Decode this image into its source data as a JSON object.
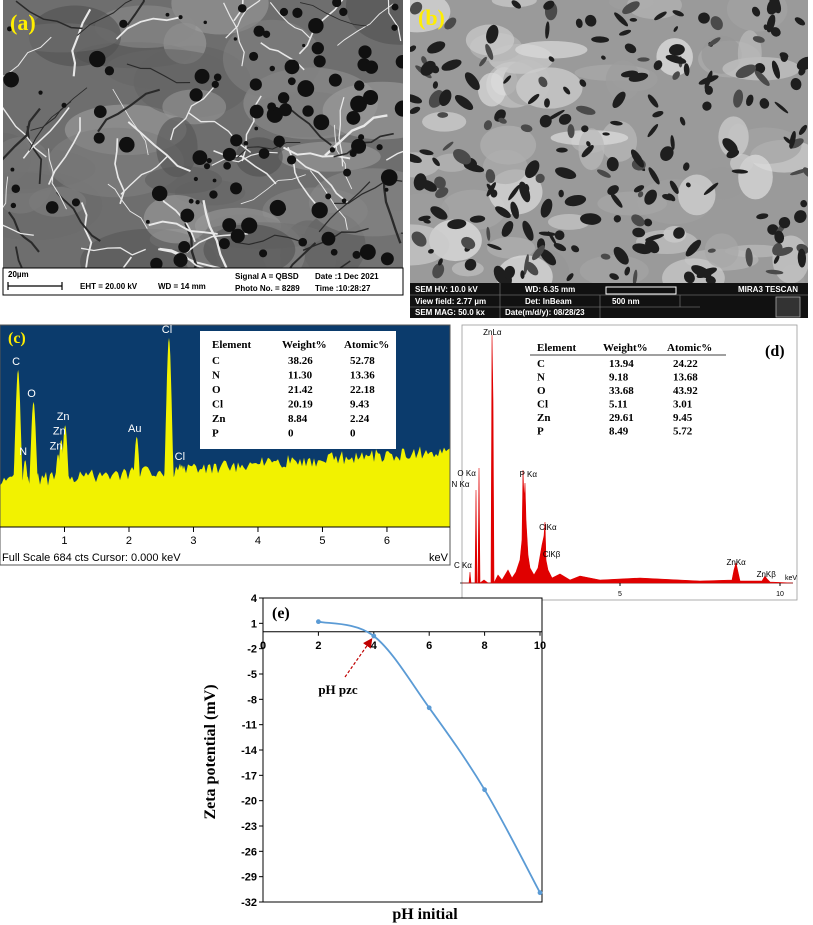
{
  "panel_a": {
    "label": "(a)",
    "scale_bar": "20µm",
    "info": [
      "EHT = 20.00 kV",
      "WD =  14 mm",
      "Signal A = QBSD",
      "Photo No. = 8289",
      "Date :1 Dec 2021",
      "Time :10:28:27"
    ]
  },
  "panel_b": {
    "label": "(b)",
    "info": [
      "SEM HV: 10.0 kV",
      "WD: 6.35 mm",
      "MIRA3 TESCAN",
      "View field: 2.77 µm",
      "Det: InBeam",
      "500 nm",
      "SEM MAG: 50.0 kx",
      "Date(m/d/y): 08/28/23"
    ]
  },
  "panel_c": {
    "label": "(c)",
    "table": {
      "header": [
        "Element",
        "Weight%",
        "Atomic%"
      ],
      "rows": [
        [
          "C",
          "38.26",
          "52.78"
        ],
        [
          "N",
          "11.30",
          "13.36"
        ],
        [
          "O",
          "21.42",
          "22.18"
        ],
        [
          "Cl",
          "20.19",
          "9.43"
        ],
        [
          "Zn",
          "8.84",
          "2.24"
        ],
        [
          "P",
          "0",
          "0"
        ]
      ]
    },
    "peaks": [
      {
        "label": "C",
        "x": 0.28,
        "counts": 540
      },
      {
        "label": "N",
        "x": 0.39,
        "counts": 230
      },
      {
        "label": "O",
        "x": 0.52,
        "counts": 430
      },
      {
        "label": "Zn",
        "x": 1.01,
        "counts": 350
      },
      {
        "label": "Zn",
        "x": 0.95,
        "counts": 300
      },
      {
        "label": "Zn",
        "x": 0.9,
        "counts": 250
      },
      {
        "label": "Au",
        "x": 2.12,
        "counts": 310
      },
      {
        "label": "Cl",
        "x": 2.62,
        "counts": 650
      },
      {
        "label": "Cl",
        "x": 2.82,
        "counts": 213
      }
    ],
    "xlim": [
      0,
      6.9
    ],
    "ylim": [
      0,
      684
    ],
    "xticks": [
      1,
      2,
      3,
      4,
      5,
      6
    ],
    "x_unit": "keV",
    "footer": "Full Scale 684 cts  Cursor: 0.000 keV"
  },
  "panel_d": {
    "label": "(d)",
    "table": {
      "header": [
        "Element",
        "Weight%",
        "Atomic%"
      ],
      "rows": [
        [
          "C",
          "13.94",
          "24.22"
        ],
        [
          "N",
          "9.18",
          "13.68"
        ],
        [
          "O",
          "33.68",
          "43.92"
        ],
        [
          "Cl",
          "5.11",
          "3.01"
        ],
        [
          "Zn",
          "29.61",
          "9.45"
        ],
        [
          "P",
          "8.49",
          "5.72"
        ]
      ]
    },
    "peaks": [
      {
        "label": "ZnLα",
        "x": 1.01
      },
      {
        "label": "O Kα",
        "x": 0.52
      },
      {
        "label": "N Kα",
        "x": 0.39
      },
      {
        "label": "P Kα",
        "x": 2.01
      },
      {
        "label": "ClKα",
        "x": 2.62
      },
      {
        "label": "ClKβ",
        "x": 2.8
      },
      {
        "label": "ZnKα",
        "x": 8.63
      },
      {
        "label": "ZnKβ",
        "x": 9.57
      },
      {
        "label": "C Kα",
        "x": 0.28
      }
    ],
    "xlim": [
      0,
      10.5
    ],
    "xticks": [
      5,
      10
    ],
    "x_unit": "keV"
  },
  "chart_data": {
    "type": "line",
    "panel_label": "(e)",
    "x": [
      2,
      4,
      6,
      8,
      10
    ],
    "series": [
      {
        "color": "#5b9bd5",
        "values": [
          1.2,
          -0.5,
          -9,
          -18.7,
          -30.9
        ]
      }
    ],
    "xlim": [
      0,
      10
    ],
    "ylim": [
      -32,
      4
    ],
    "xticks": [
      0,
      2,
      4,
      6,
      8,
      10
    ],
    "yticks": [
      4,
      1,
      -2,
      -5,
      -8,
      -11,
      -14,
      -17,
      -20,
      -23,
      -26,
      -29,
      -32
    ],
    "xlabel": "pH initial",
    "ylabel": "Zeta potential (mV)",
    "annotation": "pH pzc"
  }
}
